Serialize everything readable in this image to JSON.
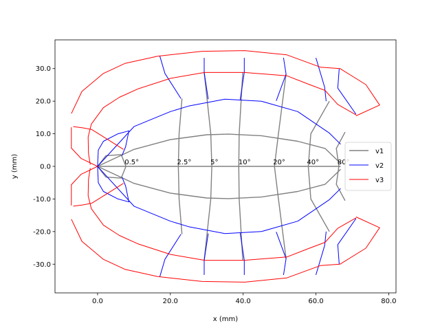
{
  "chart_data": {
    "type": "line",
    "xlabel": "x (mm)",
    "ylabel": "y (mm)",
    "xlim": [
      -11.7,
      82
    ],
    "ylim": [
      -38.8,
      38.8
    ],
    "xticks": [
      0,
      20,
      40,
      60,
      80
    ],
    "xtick_labels": [
      "0.0",
      "20.0",
      "40.0",
      "60.0",
      "80.0"
    ],
    "yticks": [
      -30,
      -20,
      -10,
      0,
      10,
      20,
      30
    ],
    "ytick_labels": [
      "-30.0",
      "-20.0",
      "-10.0",
      "0.0",
      "10.0",
      "20.0",
      "30.0"
    ],
    "grid": false,
    "legend": {
      "placement": "center-right",
      "entries": [
        {
          "label": "v1",
          "color": "#808080"
        },
        {
          "label": "v2",
          "color": "#0000ff"
        },
        {
          "label": "v3",
          "color": "#ff0000"
        }
      ]
    },
    "series": [
      {
        "name": "v1",
        "color": "#808080",
        "segments": [
          [
            [
              0,
              0
            ],
            [
              10,
              5.2
            ],
            [
              20,
              8.2
            ],
            [
              30,
              9.7
            ],
            [
              36,
              9.9
            ],
            [
              45,
              9.4
            ],
            [
              55,
              7.7
            ],
            [
              62.5,
              5.5
            ],
            [
              66.8,
              0.9
            ]
          ],
          [
            [
              0,
              0
            ],
            [
              10,
              -5.2
            ],
            [
              20,
              -8.2
            ],
            [
              30,
              -9.7
            ],
            [
              36,
              -9.9
            ],
            [
              45,
              -9.4
            ],
            [
              55,
              -7.7
            ],
            [
              62.5,
              -5.5
            ],
            [
              66.8,
              -0.9
            ]
          ],
          [
            [
              0,
              0
            ],
            [
              66.8,
              0
            ]
          ],
          [
            [
              0,
              0
            ],
            [
              2.3,
              3.3
            ],
            [
              6.5,
              3.6
            ],
            [
              7.8,
              0
            ],
            [
              6.5,
              -3.6
            ],
            [
              2.3,
              -3.3
            ],
            [
              0,
              0
            ]
          ],
          [
            [
              23.2,
              -20.8
            ],
            [
              22.4,
              -10
            ],
            [
              22.2,
              0
            ],
            [
              22.4,
              10
            ],
            [
              23.2,
              20.8
            ]
          ],
          [
            [
              29.3,
              -28.8
            ],
            [
              31.1,
              -10
            ],
            [
              31.4,
              0
            ],
            [
              31.1,
              10
            ],
            [
              29.3,
              28.8
            ]
          ],
          [
            [
              39.9,
              -28.8
            ],
            [
              38.9,
              -10
            ],
            [
              38.8,
              0
            ],
            [
              38.9,
              10
            ],
            [
              39.9,
              28.8
            ]
          ],
          [
            [
              51.8,
              -28.3
            ],
            [
              49.7,
              -10
            ],
            [
              48.6,
              0
            ],
            [
              49.7,
              10
            ],
            [
              51.8,
              28.3
            ]
          ],
          [
            [
              63.7,
              -20
            ],
            [
              58.6,
              -10
            ],
            [
              57.9,
              0
            ],
            [
              58.6,
              10
            ],
            [
              63.7,
              20
            ]
          ],
          [
            [
              68,
              -10.5
            ],
            [
              65.6,
              -5.5
            ],
            [
              66.3,
              0
            ],
            [
              65.6,
              5.5
            ],
            [
              68,
              10.5
            ]
          ]
        ]
      },
      {
        "name": "v2",
        "color": "#0000ff",
        "segments": [
          [
            [
              0,
              0
            ],
            [
              10,
              12.2
            ],
            [
              20,
              16.8
            ],
            [
              25,
              18.5
            ],
            [
              35,
              20.6
            ],
            [
              45,
              20
            ],
            [
              55,
              16.8
            ],
            [
              63.7,
              10.2
            ],
            [
              66.8,
              6.8
            ]
          ],
          [
            [
              0,
              0
            ],
            [
              10,
              -12.2
            ],
            [
              20,
              -16.8
            ],
            [
              25,
              -18.5
            ],
            [
              35,
              -20.6
            ],
            [
              45,
              -20
            ],
            [
              55,
              -16.8
            ],
            [
              63.7,
              -10.2
            ],
            [
              66.8,
              -6.8
            ]
          ],
          [
            [
              0,
              0
            ],
            [
              0.2,
              5
            ],
            [
              1.6,
              7.7
            ],
            [
              5.6,
              10
            ],
            [
              8.6,
              10.9
            ],
            [
              7.7,
              6
            ],
            [
              6.7,
              3.3
            ]
          ],
          [
            [
              0,
              0
            ],
            [
              0.2,
              -5
            ],
            [
              1.6,
              -7.7
            ],
            [
              5.6,
              -10
            ],
            [
              8.6,
              -10.9
            ],
            [
              7.7,
              -6
            ],
            [
              6.7,
              -3.3
            ]
          ],
          [
            [
              17.1,
              33.8
            ],
            [
              18.5,
              28.5
            ],
            [
              22.9,
              20.8
            ]
          ],
          [
            [
              29.3,
              33.3
            ],
            [
              29.3,
              28.8
            ],
            [
              30.4,
              20.6
            ]
          ],
          [
            [
              40.3,
              33.3
            ],
            [
              40.3,
              28.8
            ],
            [
              39.2,
              20.5
            ]
          ],
          [
            [
              51.1,
              33.3
            ],
            [
              51.8,
              28.3
            ],
            [
              49.1,
              20.1
            ]
          ],
          [
            [
              60,
              33.3
            ],
            [
              62.4,
              24.3
            ],
            [
              62.8,
              20
            ]
          ],
          [
            [
              66.4,
              30
            ],
            [
              66,
              24
            ],
            [
              71,
              16
            ]
          ],
          [
            [
              17.1,
              -33.8
            ],
            [
              18.5,
              -28.5
            ],
            [
              22.9,
              -20.8
            ]
          ],
          [
            [
              29.3,
              -33.3
            ],
            [
              29.3,
              -28.8
            ],
            [
              30.4,
              -20.6
            ]
          ],
          [
            [
              40.3,
              -33.3
            ],
            [
              40.3,
              -28.8
            ],
            [
              39.2,
              -20.5
            ]
          ],
          [
            [
              51.1,
              -33.3
            ],
            [
              51.8,
              -28.3
            ],
            [
              49.1,
              -20.1
            ]
          ],
          [
            [
              60,
              -33.3
            ],
            [
              62.4,
              -24.3
            ],
            [
              62.8,
              -20
            ]
          ],
          [
            [
              66.4,
              -30
            ],
            [
              66,
              -24
            ],
            [
              71,
              -16
            ]
          ]
        ]
      },
      {
        "name": "v3",
        "color": "#ff0000",
        "segments": [
          [
            [
              0,
              0
            ],
            [
              -4.5,
              2.4
            ],
            [
              -7.2,
              5.6
            ],
            [
              -7.2,
              12
            ]
          ],
          [
            [
              0,
              0
            ],
            [
              -4.5,
              -2.4
            ],
            [
              -7.2,
              -5.6
            ],
            [
              -7.2,
              -12
            ]
          ],
          [
            [
              -6.7,
              12.2
            ],
            [
              -4,
              11.8
            ],
            [
              -1.6,
              11.3
            ],
            [
              3,
              8.1
            ],
            [
              7.1,
              5.2
            ]
          ],
          [
            [
              -6.7,
              -12.2
            ],
            [
              -4,
              -11.8
            ],
            [
              -1.6,
              -11.3
            ],
            [
              3,
              -8.1
            ],
            [
              7.1,
              -5.2
            ]
          ],
          [
            [
              -7.2,
              16.2
            ],
            [
              -4.3,
              23
            ],
            [
              1.6,
              28.5
            ],
            [
              7.6,
              31.6
            ],
            [
              16.5,
              33.8
            ],
            [
              28.7,
              35.3
            ],
            [
              40.5,
              35.5
            ],
            [
              52,
              34.2
            ],
            [
              61.3,
              30.4
            ],
            [
              66.6,
              30
            ],
            [
              73.7,
              25.1
            ],
            [
              77.5,
              18.8
            ],
            [
              71,
              15.5
            ]
          ],
          [
            [
              -7.2,
              -16.2
            ],
            [
              -4.3,
              -23
            ],
            [
              1.6,
              -28.5
            ],
            [
              7.6,
              -31.6
            ],
            [
              16.5,
              -33.8
            ],
            [
              28.7,
              -35.3
            ],
            [
              40.5,
              -35.5
            ],
            [
              52,
              -34.2
            ],
            [
              61.3,
              -30.4
            ],
            [
              66.6,
              -30
            ],
            [
              73.7,
              -25.1
            ],
            [
              77.5,
              -18.8
            ],
            [
              71,
              -15.5
            ]
          ],
          [
            [
              -2,
              0.5
            ],
            [
              -2.5,
              4
            ],
            [
              -2.6,
              9
            ],
            [
              -1.7,
              13
            ],
            [
              1.6,
              18
            ],
            [
              6,
              21.2
            ],
            [
              11.2,
              23.8
            ],
            [
              20,
              27
            ],
            [
              29.4,
              28.8
            ],
            [
              40.3,
              28.8
            ],
            [
              52,
              27.8
            ],
            [
              58.4,
              25
            ],
            [
              62.5,
              23.3
            ],
            [
              66,
              19
            ],
            [
              71,
              15.8
            ]
          ],
          [
            [
              -2,
              -0.5
            ],
            [
              -2.5,
              -4
            ],
            [
              -2.6,
              -9
            ],
            [
              -1.7,
              -13
            ],
            [
              1.6,
              -18
            ],
            [
              6,
              -21.2
            ],
            [
              11.2,
              -23.8
            ],
            [
              20,
              -27
            ],
            [
              29.4,
              -28.8
            ],
            [
              40.3,
              -28.8
            ],
            [
              52,
              -27.8
            ],
            [
              58.4,
              -25
            ],
            [
              62.5,
              -23.3
            ],
            [
              66,
              -19
            ],
            [
              71,
              -15.8
            ]
          ]
        ]
      }
    ],
    "annotations": [
      {
        "text": "0.5°",
        "x": 7.8,
        "y": 0
      },
      {
        "text": "2.5°",
        "x": 22.2,
        "y": 0
      },
      {
        "text": "5°",
        "x": 31.4,
        "y": 0
      },
      {
        "text": "10°",
        "x": 39.1,
        "y": 0
      },
      {
        "text": "20°",
        "x": 48.6,
        "y": 0
      },
      {
        "text": "40°",
        "x": 57.9,
        "y": 0
      },
      {
        "text": "80°",
        "x": 66.3,
        "y": 0
      }
    ]
  }
}
